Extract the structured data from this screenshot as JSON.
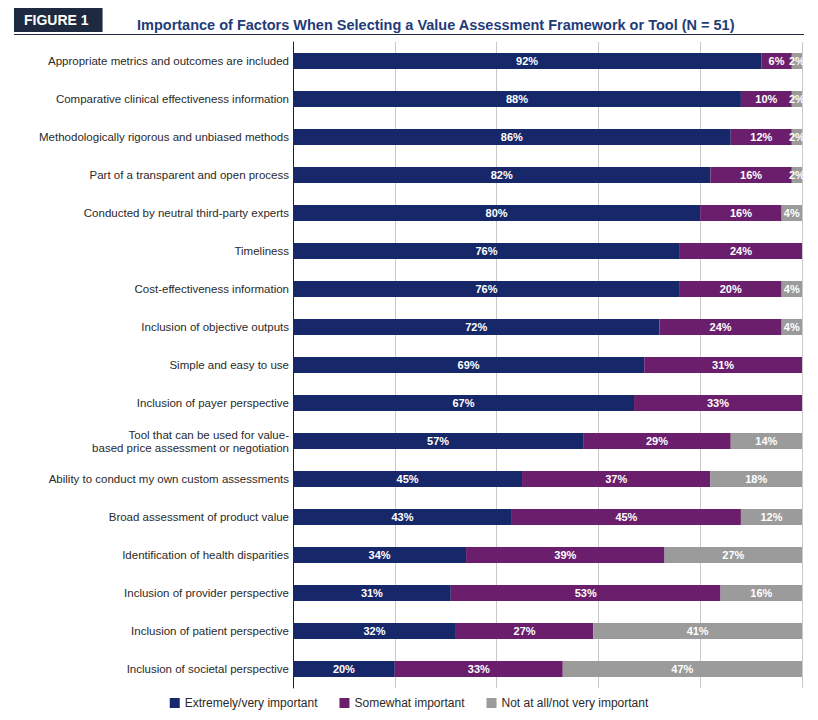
{
  "chart_data": {
    "type": "bar",
    "title": "Importance of Factors When Selecting a Value Assessment Framework or Tool (N = 51)",
    "annotations": [
      "FIGURE 1"
    ],
    "orientation": "horizontal",
    "stacked": true,
    "data_labels": true,
    "grid": true,
    "tick_labels": "y",
    "legend": "bottom",
    "xlim": [
      0,
      100
    ],
    "xticks": [
      0,
      20,
      40,
      60,
      80,
      100
    ],
    "categories": [
      "Appropriate metrics and outcomes are included",
      "Comparative clinical effectiveness information",
      "Methodologically rigorous and unbiased methods",
      "Part of a transparent and open process",
      "Conducted by neutral third-party experts",
      "Timeliness",
      "Cost-effectiveness information",
      "Inclusion of objective outputs",
      "Simple and easy to use",
      "Inclusion of payer perspective",
      "Tool that can be used for value-\nbased price assessment or negotiation",
      "Ability to conduct my own custom assessments",
      "Broad assessment of product value",
      "Identification of health disparities",
      "Inclusion of provider perspective",
      "Inclusion of patient perspective",
      "Inclusion of societal perspective"
    ],
    "series": [
      {
        "name": "Extremely/very important",
        "color": "#16286a",
        "values": [
          92,
          88,
          86,
          82,
          80,
          76,
          76,
          72,
          69,
          67,
          57,
          45,
          43,
          34,
          31,
          32,
          20
        ],
        "value_labels": [
          "92%",
          "88%",
          "86%",
          "82%",
          "80%",
          "76%",
          "76%",
          "72%",
          "69%",
          "67%",
          "57%",
          "45%",
          "43%",
          "34%",
          "31%",
          "32%",
          "20%"
        ]
      },
      {
        "name": "Somewhat important",
        "color": "#6a1e6b",
        "values": [
          6,
          10,
          12,
          16,
          16,
          24,
          20,
          24,
          31,
          33,
          29,
          37,
          45,
          39,
          53,
          27,
          33
        ],
        "value_labels": [
          "6%",
          "10%",
          "12%",
          "16%",
          "16%",
          "24%",
          "20%",
          "24%",
          "31%",
          "33%",
          "29%",
          "37%",
          "45%",
          "39%",
          "53%",
          "27%",
          "33%"
        ]
      },
      {
        "name": "Not at all/not very important",
        "color": "#9b9b9b",
        "values": [
          2,
          2,
          2,
          2,
          4,
          0,
          4,
          4,
          0,
          0,
          14,
          18,
          12,
          27,
          16,
          41,
          47
        ],
        "value_labels": [
          "2%",
          "2%",
          "2%",
          "2%",
          "4%",
          null,
          "4%",
          "4%",
          null,
          null,
          "14%",
          "18%",
          "12%",
          "27%",
          "16%",
          "41%",
          "47%"
        ]
      }
    ]
  }
}
